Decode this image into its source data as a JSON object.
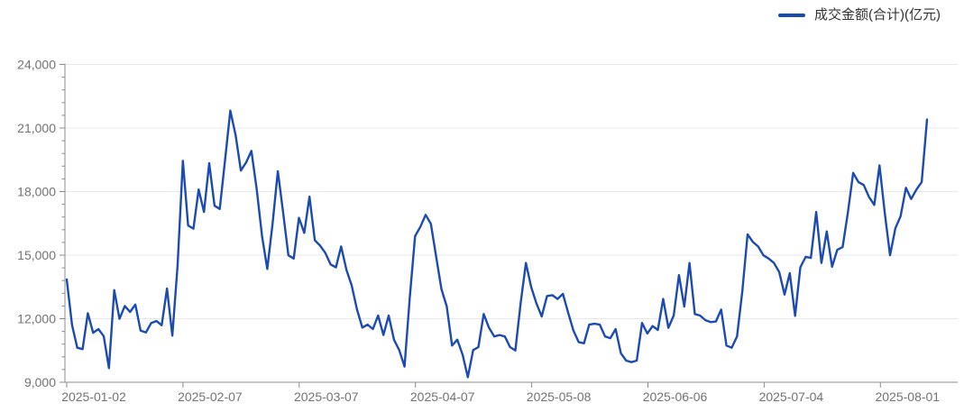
{
  "legend": {
    "label": "成交金额(合计)(亿元)"
  },
  "colors": {
    "line": "#1b4bb1",
    "axis_label": "#737373",
    "grid_line": "#e9e9e9",
    "axis_line": "#8c8c8c",
    "legend_text": "#333333",
    "background": "#ffffff"
  },
  "chart_data": {
    "type": "line",
    "title": "",
    "legend_position": "top-right",
    "grid": "horizontal-only",
    "y_axis": {
      "min": 9000,
      "max": 24000,
      "tick_interval": 3000,
      "minor_tick_interval": 600,
      "tick_labels": [
        "9,000",
        "12,000",
        "15,000",
        "18,000",
        "21,000",
        "24,000"
      ]
    },
    "x_axis": {
      "tick_labels": [
        "2025-01-02",
        "2025-02-07",
        "2025-03-07",
        "2025-04-07",
        "2025-05-08",
        "2025-06-06",
        "2025-07-04",
        "2025-08-01"
      ]
    },
    "series": [
      {
        "name": "成交金额(合计)(亿元)",
        "color": "#1b4bb1",
        "values": [
          13850,
          11700,
          10630,
          10560,
          12260,
          11330,
          11510,
          11180,
          9670,
          13350,
          11990,
          12600,
          12320,
          12670,
          11440,
          11350,
          11790,
          11890,
          11690,
          13420,
          11200,
          14500,
          19450,
          16400,
          16250,
          18100,
          17040,
          19340,
          17330,
          17180,
          19500,
          21820,
          20660,
          18990,
          19380,
          19920,
          18100,
          15900,
          14350,
          16500,
          18960,
          17000,
          14990,
          14840,
          16760,
          16050,
          17760,
          15700,
          15450,
          15100,
          14560,
          14420,
          15410,
          14300,
          13570,
          12430,
          11580,
          11720,
          11510,
          12150,
          11230,
          12150,
          11010,
          10520,
          9740,
          13000,
          15900,
          16330,
          16900,
          16480,
          14920,
          13400,
          12580,
          10730,
          11010,
          10300,
          9240,
          10520,
          10660,
          12220,
          11580,
          11160,
          11230,
          11160,
          10660,
          10500,
          12720,
          14630,
          13500,
          12720,
          12100,
          13070,
          13110,
          12930,
          13170,
          12290,
          11440,
          10900,
          10840,
          11720,
          11760,
          11720,
          11160,
          11080,
          11510,
          10370,
          10020,
          9950,
          10020,
          11800,
          11300,
          11650,
          11470,
          12930,
          11570,
          12150,
          14060,
          12570,
          14630,
          12220,
          12150,
          11930,
          11840,
          11870,
          12430,
          10730,
          10630,
          11160,
          13300,
          15980,
          15620,
          15410,
          14990,
          14840,
          14630,
          14200,
          13140,
          14150,
          12130,
          14420,
          14920,
          14870,
          17040,
          14630,
          16120,
          14450,
          15250,
          15380,
          17000,
          18880,
          18450,
          18310,
          17750,
          17370,
          19240,
          16970,
          14990,
          16270,
          16840,
          18180,
          17650,
          18100,
          18450,
          21400
        ]
      }
    ]
  }
}
